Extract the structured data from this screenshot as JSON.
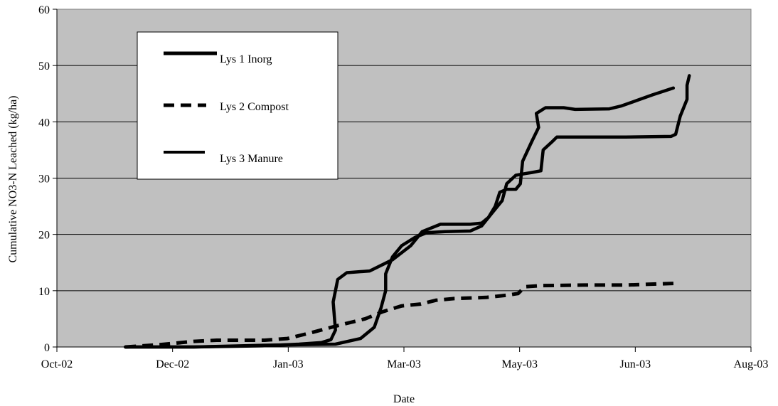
{
  "chart_data": {
    "type": "line",
    "title": "",
    "xlabel": "Date",
    "ylabel": "Cumulative NO3-N Leached (kg/ha)",
    "x_ticks": [
      "Oct-02",
      "Dec-02",
      "Jan-03",
      "Mar-03",
      "May-03",
      "Jun-03",
      "Aug-03"
    ],
    "xlim": [
      "2002-10-01",
      "2003-08-01"
    ],
    "ylim": [
      0,
      60
    ],
    "y_ticks": [
      0,
      10,
      20,
      30,
      40,
      50,
      60
    ],
    "grid": true,
    "plot_background": "#c0c0c0",
    "legend_position": "top-left",
    "series": [
      {
        "name": "Lys 1 Inorg",
        "style": "solid",
        "color": "#000000",
        "points": [
          [
            "2002-10-31",
            0
          ],
          [
            "2002-11-30",
            0
          ],
          [
            "2002-12-30",
            0.2
          ],
          [
            "2003-01-15",
            0.5
          ],
          [
            "2003-01-25",
            0.8
          ],
          [
            "2003-01-29",
            1.3
          ],
          [
            "2003-01-31",
            3
          ],
          [
            "2003-01-30",
            8
          ],
          [
            "2003-02-01",
            12
          ],
          [
            "2003-02-05",
            13.2
          ],
          [
            "2003-02-15",
            13.5
          ],
          [
            "2003-02-25",
            15.5
          ],
          [
            "2003-03-05",
            18
          ],
          [
            "2003-03-10",
            20.5
          ],
          [
            "2003-03-18",
            21.8
          ],
          [
            "2003-03-31",
            21.8
          ],
          [
            "2003-04-05",
            22
          ],
          [
            "2003-04-08",
            23
          ],
          [
            "2003-04-11",
            25
          ],
          [
            "2003-04-13",
            27.5
          ],
          [
            "2003-04-16",
            28
          ],
          [
            "2003-04-20",
            28
          ],
          [
            "2003-04-22",
            29
          ],
          [
            "2003-04-23",
            33
          ],
          [
            "2003-04-27",
            36.5
          ],
          [
            "2003-04-30",
            39
          ],
          [
            "2003-04-29",
            41.5
          ],
          [
            "2003-05-03",
            42.5
          ],
          [
            "2003-05-11",
            42.5
          ],
          [
            "2003-05-16",
            42.2
          ],
          [
            "2003-05-31",
            42.3
          ],
          [
            "2003-06-05",
            42.8
          ],
          [
            "2003-06-12",
            43.8
          ],
          [
            "2003-06-19",
            44.8
          ],
          [
            "2003-06-28",
            46
          ]
        ]
      },
      {
        "name": "Lys 2 Compost",
        "style": "dashed",
        "color": "#000000",
        "points": [
          [
            "2002-10-31",
            0
          ],
          [
            "2002-11-15",
            0.4
          ],
          [
            "2002-11-30",
            1
          ],
          [
            "2002-12-10",
            1.2
          ],
          [
            "2002-12-31",
            1.2
          ],
          [
            "2003-01-10",
            1.5
          ],
          [
            "2003-01-20",
            2.5
          ],
          [
            "2003-02-01",
            3.8
          ],
          [
            "2003-02-13",
            5
          ],
          [
            "2003-02-21",
            6.3
          ],
          [
            "2003-03-01",
            7.3
          ],
          [
            "2003-03-09",
            7.6
          ],
          [
            "2003-03-16",
            8.3
          ],
          [
            "2003-03-24",
            8.6
          ],
          [
            "2003-04-07",
            8.8
          ],
          [
            "2003-04-16",
            9.2
          ],
          [
            "2003-04-21",
            9.5
          ],
          [
            "2003-04-24",
            10.7
          ],
          [
            "2003-05-01",
            10.9
          ],
          [
            "2003-05-20",
            11
          ],
          [
            "2003-06-07",
            11
          ],
          [
            "2003-06-29",
            11.3
          ],
          [
            "2003-06-30",
            11.7
          ]
        ]
      },
      {
        "name": "Lys 3 Manure",
        "style": "solid",
        "color": "#000000",
        "points": [
          [
            "2002-10-31",
            0
          ],
          [
            "2002-11-30",
            0
          ],
          [
            "2002-12-30",
            0.3
          ],
          [
            "2003-01-31",
            0.5
          ],
          [
            "2003-02-11",
            1.5
          ],
          [
            "2003-02-17",
            3.5
          ],
          [
            "2003-02-20",
            7
          ],
          [
            "2003-02-22",
            10
          ],
          [
            "2003-02-22",
            13
          ],
          [
            "2003-02-25",
            16
          ],
          [
            "2003-03-01",
            18
          ],
          [
            "2003-03-07",
            19.5
          ],
          [
            "2003-03-12",
            20.3
          ],
          [
            "2003-03-20",
            20.5
          ],
          [
            "2003-03-31",
            20.6
          ],
          [
            "2003-04-05",
            21.5
          ],
          [
            "2003-04-10",
            24
          ],
          [
            "2003-04-14",
            26
          ],
          [
            "2003-04-16",
            29
          ],
          [
            "2003-04-20",
            30.5
          ],
          [
            "2003-04-24",
            30.8
          ],
          [
            "2003-04-27",
            31
          ],
          [
            "2003-05-01",
            31.3
          ],
          [
            "2003-05-02",
            35
          ],
          [
            "2003-05-06",
            36.5
          ],
          [
            "2003-05-08",
            37.3
          ],
          [
            "2003-05-20",
            37.3
          ],
          [
            "2003-06-07",
            37.3
          ],
          [
            "2003-06-27",
            37.4
          ],
          [
            "2003-06-29",
            37.8
          ],
          [
            "2003-07-01",
            41
          ],
          [
            "2003-07-04",
            44
          ],
          [
            "2003-07-04",
            46.5
          ],
          [
            "2003-07-05",
            48.2
          ]
        ]
      }
    ]
  }
}
